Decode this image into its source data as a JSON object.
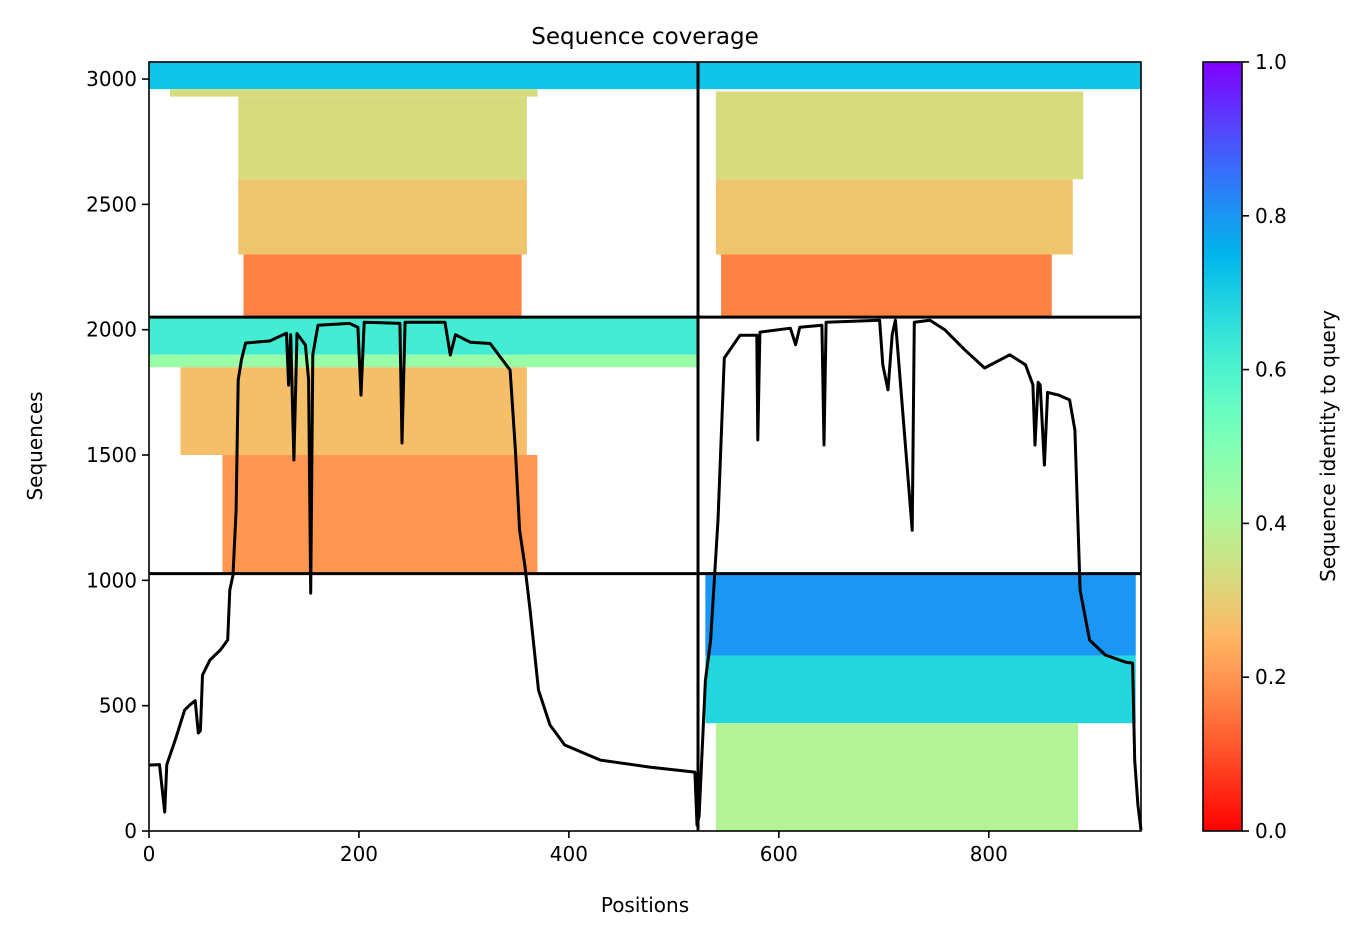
{
  "chart_data": {
    "type": "coverage",
    "title": "Sequence coverage",
    "x_label": "Positions",
    "y_label": "Sequences",
    "xlim": [
      0,
      945
    ],
    "ylim": [
      0,
      3068
    ],
    "xticks": [
      0,
      200,
      400,
      600,
      800
    ],
    "yticks": [
      0,
      500,
      1000,
      1500,
      2000,
      2500,
      3000
    ],
    "colorbar": {
      "label": "Sequence identity to query",
      "lim": [
        0,
        1
      ],
      "ticks": [
        {
          "value": 0,
          "label": "0.0"
        },
        {
          "value": 0.2,
          "label": "0.2"
        },
        {
          "value": 0.4,
          "label": "0.4"
        },
        {
          "value": 0.6,
          "label": "0.6"
        },
        {
          "value": 0.8,
          "label": "0.8"
        },
        {
          "value": 1,
          "label": "1.0"
        }
      ]
    },
    "blocks": [
      {
        "x": [
          0,
          523
        ],
        "y": [
          2960,
          3068
        ],
        "identity": 0.72
      },
      {
        "x": [
          20,
          370
        ],
        "y": [
          2930,
          2960
        ],
        "identity": 0.33
      },
      {
        "x": [
          85,
          360
        ],
        "y": [
          2600,
          2930
        ],
        "identity": 0.33
      },
      {
        "x": [
          85,
          360
        ],
        "y": [
          2300,
          2600
        ],
        "identity": 0.28
      },
      {
        "x": [
          90,
          355
        ],
        "y": [
          2050,
          2300
        ],
        "identity": 0.17
      },
      {
        "x": [
          523,
          945
        ],
        "y": [
          2960,
          3068
        ],
        "identity": 0.72
      },
      {
        "x": [
          540,
          890
        ],
        "y": [
          2600,
          2950
        ],
        "identity": 0.33
      },
      {
        "x": [
          540,
          880
        ],
        "y": [
          2300,
          2600
        ],
        "identity": 0.28
      },
      {
        "x": [
          545,
          860
        ],
        "y": [
          2050,
          2300
        ],
        "identity": 0.17
      },
      {
        "x": [
          0,
          523
        ],
        "y": [
          1900,
          2050
        ],
        "identity": 0.62
      },
      {
        "x": [
          0,
          523
        ],
        "y": [
          1850,
          1900
        ],
        "identity": 0.45
      },
      {
        "x": [
          30,
          360
        ],
        "y": [
          1500,
          1850
        ],
        "identity": 0.27
      },
      {
        "x": [
          70,
          370
        ],
        "y": [
          1027,
          1500
        ],
        "identity": 0.2
      },
      {
        "x": [
          530,
          940
        ],
        "y": [
          700,
          1027
        ],
        "identity": 0.8
      },
      {
        "x": [
          530,
          940
        ],
        "y": [
          430,
          700
        ],
        "identity": 0.68
      },
      {
        "x": [
          540,
          885
        ],
        "y": [
          0,
          430
        ],
        "identity": 0.4
      }
    ],
    "boundaries": {
      "x": [
        523
      ],
      "y": [
        1027,
        2050
      ]
    },
    "coverage": {
      "color": "#000000",
      "x": [
        0,
        10,
        15,
        17,
        25,
        28,
        31,
        34,
        39,
        44,
        47,
        49,
        51,
        58,
        68,
        75,
        77,
        80,
        83,
        85,
        88,
        92,
        115,
        131,
        133,
        135,
        138,
        141,
        149,
        152,
        154,
        156,
        161,
        191,
        199,
        202,
        205,
        239,
        241,
        244,
        282,
        287,
        292,
        306,
        325,
        344,
        349,
        353,
        358,
        363,
        371,
        382,
        396,
        430,
        477,
        520,
        522,
        524,
        530,
        535,
        542,
        548,
        563,
        579,
        580,
        582,
        611,
        616,
        620,
        641,
        643,
        645,
        696,
        699,
        704,
        708,
        711,
        727,
        729,
        744,
        758,
        777,
        796,
        820,
        835,
        842,
        844,
        847,
        849,
        853,
        856,
        866,
        877,
        882,
        887,
        896,
        911,
        930,
        937,
        939,
        942,
        945
      ],
      "values": [
        263,
        265,
        76,
        265,
        363,
        403,
        443,
        483,
        503,
        520,
        391,
        400,
        622,
        682,
        722,
        762,
        961,
        1021,
        1280,
        1799,
        1879,
        1947,
        1955,
        1986,
        1779,
        1980,
        1480,
        1985,
        1939,
        1800,
        949,
        1900,
        2018,
        2025,
        2010,
        1739,
        2030,
        2025,
        1548,
        2030,
        2030,
        1899,
        1980,
        1950,
        1945,
        1839,
        1520,
        1200,
        1061,
        881,
        562,
        423,
        343,
        283,
        255,
        235,
        24,
        60,
        600,
        760,
        1240,
        1887,
        1978,
        1978,
        1560,
        1990,
        2006,
        1940,
        2010,
        2018,
        1540,
        2030,
        2038,
        1860,
        1760,
        1980,
        2038,
        1200,
        2030,
        2038,
        2000,
        1920,
        1847,
        1900,
        1860,
        1780,
        1540,
        1790,
        1780,
        1460,
        1750,
        1740,
        1720,
        1600,
        961,
        762,
        702,
        674,
        670,
        283,
        104,
        4
      ]
    }
  }
}
